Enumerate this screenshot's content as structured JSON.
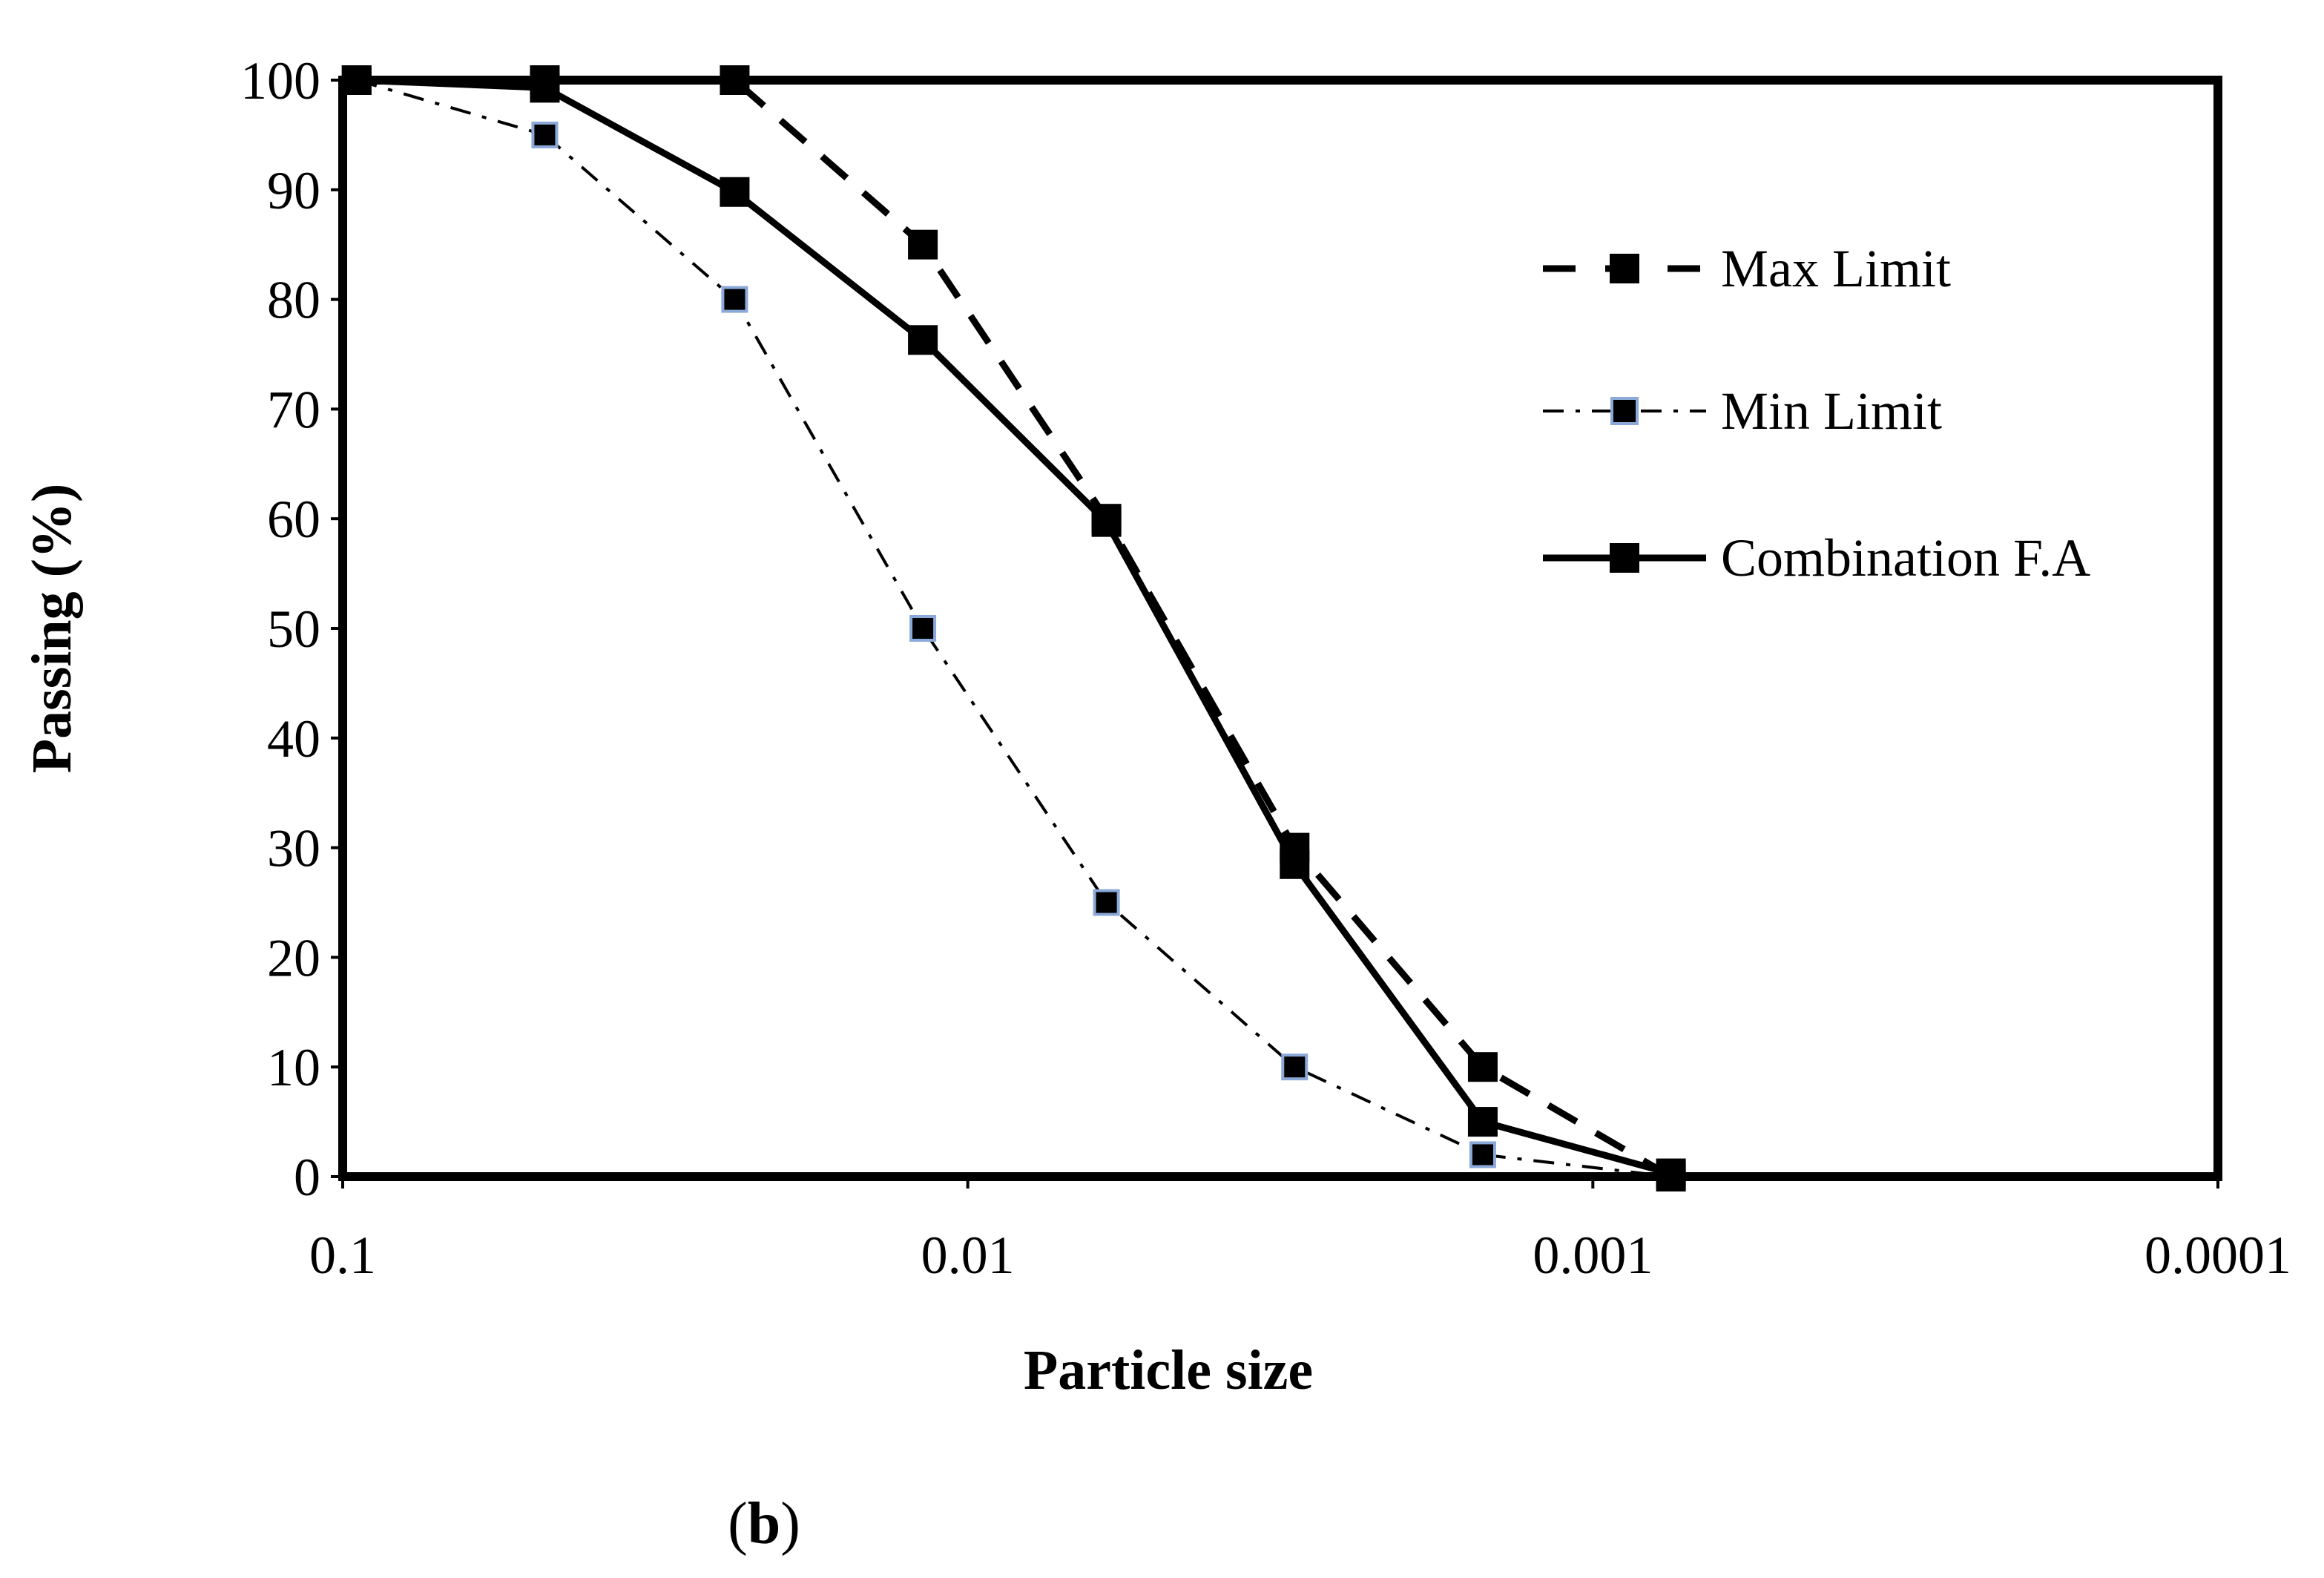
{
  "chart_data": {
    "type": "line",
    "title": "",
    "xlabel": "Particle size",
    "ylabel": "Passing (%)",
    "x_scale": "log",
    "x_reversed": true,
    "xlim": [
      0.1,
      0.0001
    ],
    "ylim": [
      0,
      100
    ],
    "x_ticks": [
      0.1,
      0.01,
      0.001,
      0.0001
    ],
    "x_tick_labels": [
      "0.1",
      "0.01",
      "0.001",
      "0.0001"
    ],
    "y_ticks": [
      0,
      10,
      20,
      30,
      40,
      50,
      60,
      70,
      80,
      90,
      100
    ],
    "y_tick_labels": [
      "0",
      "10",
      "20",
      "30",
      "40",
      "50",
      "60",
      "70",
      "80",
      "90",
      "100"
    ],
    "grid": false,
    "legend_position": "top-right",
    "series": [
      {
        "name": "Max Limit",
        "style": "dashed",
        "marker_fill": "#000000",
        "marker_stroke": "#000000",
        "x": [
          0.095,
          0.0475,
          0.0236,
          0.0118,
          0.006,
          0.003,
          0.0015,
          0.00075
        ],
        "y": [
          100,
          100,
          100,
          85,
          60,
          30,
          10,
          0
        ]
      },
      {
        "name": "Min Limit",
        "style": "dash-dot",
        "marker_fill": "#000000",
        "marker_stroke": "#8aa8d8",
        "x": [
          0.095,
          0.0475,
          0.0236,
          0.0118,
          0.006,
          0.003,
          0.0015,
          0.00075
        ],
        "y": [
          100,
          95,
          80,
          50,
          25,
          10,
          2,
          0
        ]
      },
      {
        "name": "Combination F.A",
        "style": "solid",
        "marker_fill": "#000000",
        "marker_stroke": "#000000",
        "x": [
          0.095,
          0.0475,
          0.0236,
          0.0118,
          0.006,
          0.003,
          0.0015,
          0.00075
        ],
        "y": [
          100,
          99.3,
          89.8,
          76.3,
          59.7,
          28.5,
          5,
          0.3
        ]
      }
    ]
  },
  "caption": "(b)",
  "colors": {
    "line": "#000000",
    "background": "#ffffff",
    "min_marker_edge": "#8aa8d8"
  }
}
